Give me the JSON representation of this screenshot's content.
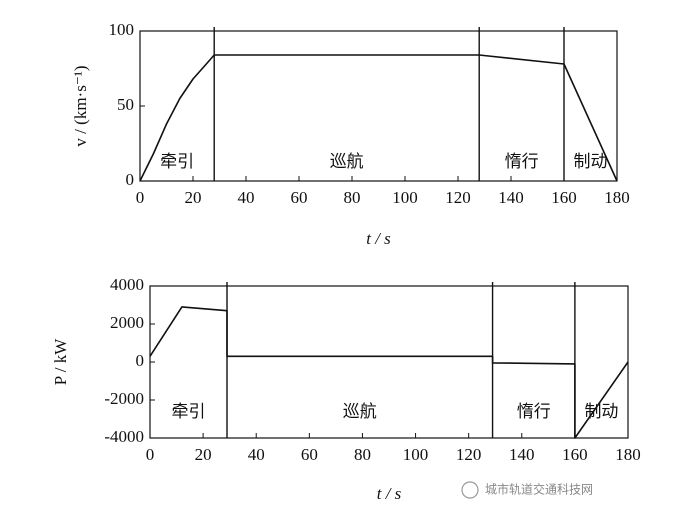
{
  "chart_data": [
    {
      "type": "line",
      "xlabel": "t / s",
      "ylabel": "v / (km·s⁻¹)",
      "x": [
        0,
        5,
        10,
        15,
        20,
        25,
        28,
        128,
        160,
        180
      ],
      "values": [
        0,
        18,
        38,
        55,
        68,
        78,
        84,
        84,
        78,
        0
      ],
      "xlim": [
        0,
        180
      ],
      "ylim": [
        0,
        100
      ],
      "xticks": [
        0,
        20,
        40,
        60,
        80,
        100,
        120,
        140,
        160,
        180
      ],
      "yticks": [
        0,
        50,
        100
      ],
      "boundaries": [
        28,
        128,
        160
      ],
      "phase_labels": [
        "牵引",
        "巡航",
        "惰行",
        "制动"
      ]
    },
    {
      "type": "line",
      "xlabel": "t / s",
      "ylabel": "P / kW",
      "x": [
        0,
        12,
        29,
        29,
        129,
        129,
        160,
        160,
        180
      ],
      "values": [
        300,
        2900,
        2700,
        300,
        300,
        -50,
        -100,
        -4000,
        0
      ],
      "xlim": [
        0,
        180
      ],
      "ylim": [
        -4000,
        4000
      ],
      "xticks": [
        0,
        20,
        40,
        60,
        80,
        100,
        120,
        140,
        160,
        180
      ],
      "yticks": [
        -4000,
        -2000,
        0,
        2000,
        4000
      ],
      "boundaries": [
        29,
        129,
        160
      ],
      "phase_labels": [
        "牵引",
        "巡航",
        "惰行",
        "制动"
      ]
    }
  ],
  "watermark": "城市轨道交通科技网"
}
